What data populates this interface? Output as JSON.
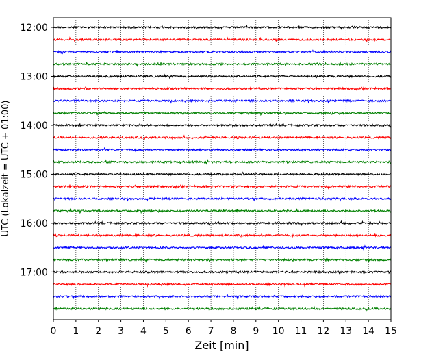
{
  "chart_data": {
    "type": "line",
    "title": "",
    "xlabel": "Zeit  [min]",
    "ylabel": "UTC (Lokalzeit = UTC + 01:00)",
    "xlim": [
      0,
      15
    ],
    "x_ticks": [
      "0",
      "1",
      "2",
      "3",
      "4",
      "5",
      "6",
      "7",
      "8",
      "9",
      "10",
      "11",
      "12",
      "13",
      "14",
      "15"
    ],
    "y_tick_labels": [
      "12:00",
      "13:00",
      "14:00",
      "15:00",
      "16:00",
      "17:00"
    ],
    "grid": "vertical dotted at each minute",
    "trace_colors_cycle": [
      "#000000",
      "#ff0000",
      "#0000ff",
      "#008000"
    ],
    "traces": [
      {
        "start_utc": "12:00",
        "color": "#000000"
      },
      {
        "start_utc": "12:15",
        "color": "#ff0000"
      },
      {
        "start_utc": "12:30",
        "color": "#0000ff"
      },
      {
        "start_utc": "12:45",
        "color": "#008000"
      },
      {
        "start_utc": "13:00",
        "color": "#000000"
      },
      {
        "start_utc": "13:15",
        "color": "#ff0000"
      },
      {
        "start_utc": "13:30",
        "color": "#0000ff"
      },
      {
        "start_utc": "13:45",
        "color": "#008000"
      },
      {
        "start_utc": "14:00",
        "color": "#000000"
      },
      {
        "start_utc": "14:15",
        "color": "#ff0000"
      },
      {
        "start_utc": "14:30",
        "color": "#0000ff"
      },
      {
        "start_utc": "14:45",
        "color": "#008000"
      },
      {
        "start_utc": "15:00",
        "color": "#000000"
      },
      {
        "start_utc": "15:15",
        "color": "#ff0000"
      },
      {
        "start_utc": "15:30",
        "color": "#0000ff"
      },
      {
        "start_utc": "15:45",
        "color": "#008000"
      },
      {
        "start_utc": "16:00",
        "color": "#000000"
      },
      {
        "start_utc": "16:15",
        "color": "#ff0000"
      },
      {
        "start_utc": "16:30",
        "color": "#0000ff"
      },
      {
        "start_utc": "16:45",
        "color": "#008000"
      },
      {
        "start_utc": "17:00",
        "color": "#000000"
      },
      {
        "start_utc": "17:15",
        "color": "#ff0000"
      },
      {
        "start_utc": "17:30",
        "color": "#0000ff"
      },
      {
        "start_utc": "17:45",
        "color": "#008000"
      }
    ]
  }
}
